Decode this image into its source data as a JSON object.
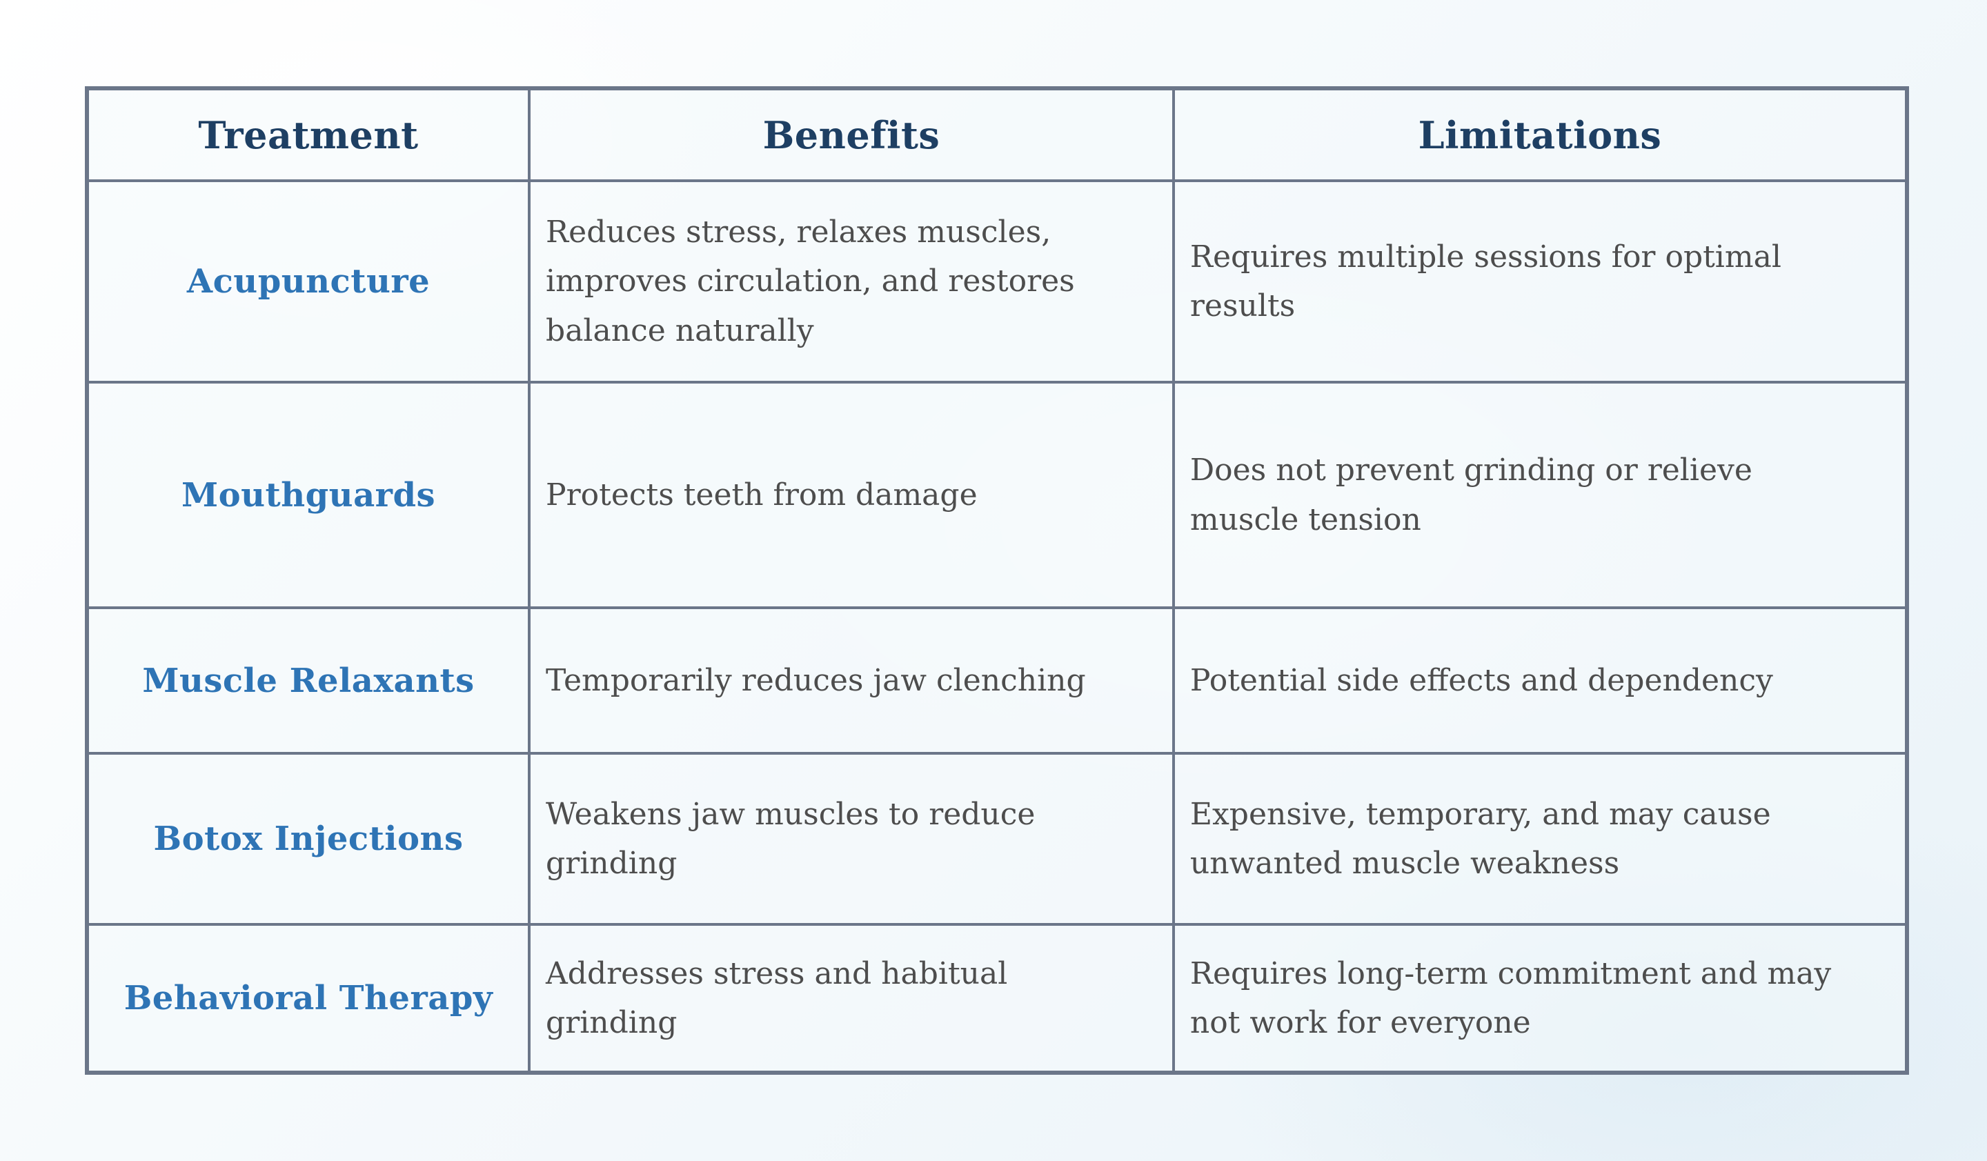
{
  "colors": {
    "header_text": "#1e3f63",
    "treatment_text": "#2e74b5",
    "body_text": "#4d4d4d",
    "border": "#6b7689",
    "background": "#f4f9fc"
  },
  "table": {
    "headers": {
      "treatment": "Treatment",
      "benefits": "Benefits",
      "limitations": "Limitations"
    },
    "rows": [
      {
        "treatment": "Acupuncture",
        "benefits": "Reduces stress, relaxes muscles, improves circulation, and restores balance naturally",
        "limitations": "Requires multiple sessions for optimal results"
      },
      {
        "treatment": "Mouthguards",
        "benefits": "Protects teeth from damage",
        "limitations": "Does not prevent grinding or relieve muscle tension"
      },
      {
        "treatment": "Muscle Relaxants",
        "benefits": "Temporarily reduces jaw clenching",
        "limitations": "Potential side effects and dependency"
      },
      {
        "treatment": "Botox Injections",
        "benefits": "Weakens jaw muscles to reduce grinding",
        "limitations": "Expensive, temporary, and may cause unwanted muscle weakness"
      },
      {
        "treatment": "Behavioral Therapy",
        "benefits": "Addresses stress and habitual grinding",
        "limitations": "Requires long-term commitment and may not work for everyone"
      }
    ]
  }
}
